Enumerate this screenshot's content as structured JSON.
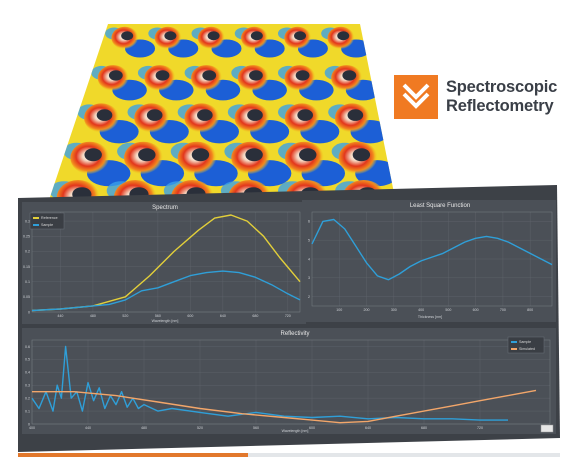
{
  "brand": {
    "line1": "Spectroscopic",
    "line2": "Reflectometry",
    "accent_color": "#f07a22",
    "icon": "double-chevron-down-icon"
  },
  "spectrum_panel": {
    "title": "Spectrum",
    "legend": [
      "Reference",
      "Sample"
    ],
    "xlabel": "Wavelength [nm]"
  },
  "lsf_panel": {
    "title": "Least Square Function",
    "xlabel": "Thickness [nm]"
  },
  "reflectivity_panel": {
    "title": "Reflectivity",
    "legend": [
      "Sample",
      "Simulated"
    ],
    "xlabel": "Wavelength [nm]"
  },
  "chart_data": [
    {
      "type": "line",
      "title": "Spectrum",
      "xlabel": "Wavelength [nm]",
      "ylabel": "",
      "grid": true,
      "legend_placement": "top-left",
      "x_ticks": [
        "440",
        "480",
        "520",
        "560",
        "600",
        "640",
        "680",
        "720"
      ],
      "y_ticks": [
        "0",
        "0.05",
        "0.1",
        "0.15",
        "0.2",
        "0.25",
        "0.3"
      ],
      "xlim": [
        405,
        735
      ],
      "ylim": [
        0,
        0.33
      ],
      "series": [
        {
          "name": "Reference",
          "color": "#e2cf3a",
          "x": [
            405,
            440,
            480,
            520,
            550,
            580,
            610,
            630,
            650,
            670,
            690,
            710,
            735
          ],
          "y": [
            0.005,
            0.01,
            0.02,
            0.05,
            0.12,
            0.2,
            0.27,
            0.31,
            0.32,
            0.3,
            0.25,
            0.18,
            0.1
          ]
        },
        {
          "name": "Sample",
          "color": "#2f9fd8",
          "x": [
            405,
            440,
            480,
            500,
            520,
            540,
            560,
            580,
            600,
            620,
            640,
            660,
            680,
            700,
            720,
            735
          ],
          "y": [
            0.005,
            0.01,
            0.02,
            0.025,
            0.04,
            0.07,
            0.08,
            0.1,
            0.12,
            0.13,
            0.135,
            0.13,
            0.115,
            0.09,
            0.06,
            0.04
          ]
        }
      ]
    },
    {
      "type": "line",
      "title": "Least Square Function",
      "xlabel": "Thickness [nm]",
      "ylabel": "",
      "grid": true,
      "x_ticks": [
        "100",
        "200",
        "300",
        "400",
        "500",
        "600",
        "700",
        "800"
      ],
      "y_ticks": [
        "2",
        "3",
        "4",
        "5",
        "6"
      ],
      "xlim": [
        0,
        880
      ],
      "ylim": [
        1.5,
        6.5
      ],
      "series": [
        {
          "name": "",
          "color": "#2f9fd8",
          "x": [
            0,
            40,
            80,
            120,
            160,
            200,
            240,
            280,
            320,
            360,
            400,
            440,
            480,
            520,
            560,
            600,
            640,
            680,
            720,
            760,
            800,
            840,
            880
          ],
          "y": [
            4.8,
            6.0,
            6.1,
            5.6,
            4.7,
            3.8,
            3.1,
            2.9,
            3.2,
            3.6,
            3.9,
            4.1,
            4.3,
            4.6,
            4.9,
            5.1,
            5.2,
            5.1,
            4.9,
            4.6,
            4.3,
            4.0,
            3.7
          ]
        }
      ]
    },
    {
      "type": "line",
      "title": "Reflectivity",
      "xlabel": "Wavelength [nm]",
      "ylabel": "",
      "grid": true,
      "legend_placement": "top-right",
      "x_ticks": [
        "400",
        "440",
        "480",
        "520",
        "560",
        "600",
        "640",
        "680",
        "720"
      ],
      "y_ticks": [
        "0",
        "0.1",
        "0.2",
        "0.3",
        "0.4",
        "0.5",
        "0.6"
      ],
      "xlim": [
        400,
        770
      ],
      "ylim": [
        0,
        0.65
      ],
      "series": [
        {
          "name": "Sample",
          "color": "#2f9fd8",
          "x": [
            400,
            405,
            410,
            415,
            418,
            421,
            424,
            428,
            432,
            436,
            440,
            444,
            448,
            452,
            456,
            460,
            464,
            468,
            472,
            476,
            480,
            490,
            500,
            520,
            540,
            560,
            580,
            600,
            620,
            640,
            660,
            680,
            700,
            720,
            740
          ],
          "y": [
            0.2,
            0.12,
            0.25,
            0.1,
            0.3,
            0.2,
            0.6,
            0.2,
            0.25,
            0.1,
            0.32,
            0.18,
            0.28,
            0.12,
            0.22,
            0.15,
            0.25,
            0.13,
            0.2,
            0.12,
            0.15,
            0.1,
            0.12,
            0.09,
            0.06,
            0.09,
            0.06,
            0.05,
            0.06,
            0.04,
            0.05,
            0.04,
            0.04,
            0.03,
            0.03
          ]
        },
        {
          "name": "Simulated",
          "color": "#f2a66a",
          "x": [
            400,
            430,
            460,
            490,
            520,
            550,
            580,
            600,
            620,
            640,
            660,
            680,
            700,
            720,
            740,
            760
          ],
          "y": [
            0.25,
            0.25,
            0.22,
            0.17,
            0.12,
            0.08,
            0.05,
            0.03,
            0.01,
            0.02,
            0.06,
            0.1,
            0.14,
            0.18,
            0.22,
            0.26
          ]
        }
      ]
    }
  ]
}
